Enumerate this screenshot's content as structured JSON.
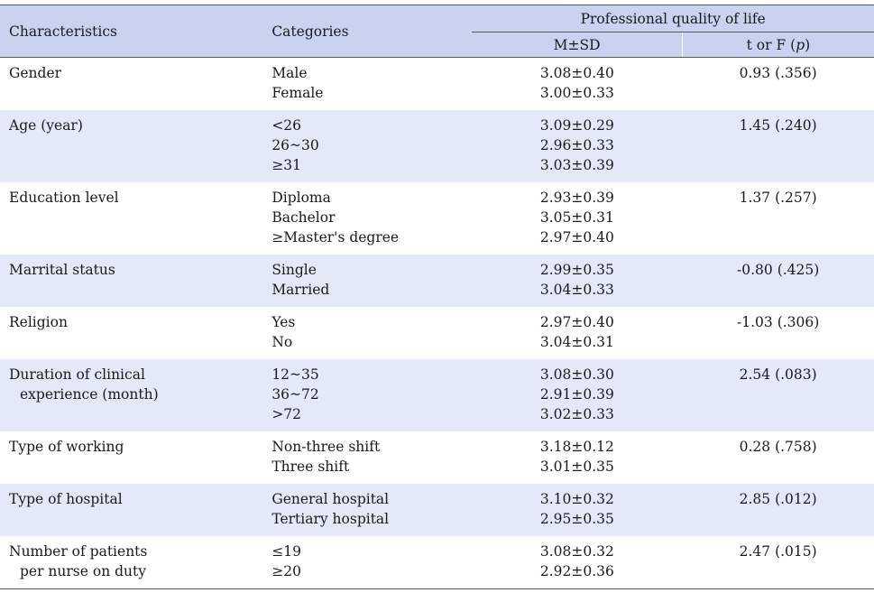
{
  "header": {
    "characteristics": "Characteristics",
    "categories": "Categories",
    "group": "Professional quality of life",
    "msd": "M±SD",
    "t_or_f": "t or F (",
    "p": "p",
    "close_paren": ")"
  },
  "rows": [
    {
      "char": [
        "Gender"
      ],
      "cats": [
        "Male",
        "Female"
      ],
      "msd": [
        "3.08±0.40",
        "3.00±0.33"
      ],
      "t": "0.93 (.356)"
    },
    {
      "char": [
        "Age (year)"
      ],
      "cats": [
        "<26",
        "26~30",
        "≥31"
      ],
      "msd": [
        "3.09±0.29",
        "2.96±0.33",
        "3.03±0.39"
      ],
      "t": "1.45 (.240)"
    },
    {
      "char": [
        "Education level"
      ],
      "cats": [
        "Diploma",
        "Bachelor",
        "≥Master's degree"
      ],
      "msd": [
        "2.93±0.39",
        "3.05±0.31",
        "2.97±0.40"
      ],
      "t": "1.37 (.257)"
    },
    {
      "char": [
        "Marrital status"
      ],
      "cats": [
        "Single",
        "Married"
      ],
      "msd": [
        "2.99±0.35",
        "3.04±0.33"
      ],
      "t": "-0.80 (.425)"
    },
    {
      "char": [
        "Religion"
      ],
      "cats": [
        "Yes",
        "No"
      ],
      "msd": [
        "2.97±0.40",
        "3.04±0.31"
      ],
      "t": "-1.03 (.306)"
    },
    {
      "char": [
        "Duration of clinical",
        "experience (month)"
      ],
      "cats": [
        "12~35",
        "36~72",
        ">72"
      ],
      "msd": [
        "3.08±0.30",
        "2.91±0.39",
        "3.02±0.33"
      ],
      "t": "2.54 (.083)"
    },
    {
      "char": [
        "Type of working"
      ],
      "cats": [
        "Non-three shift",
        "Three shift"
      ],
      "msd": [
        "3.18±0.12",
        "3.01±0.35"
      ],
      "t": "0.28 (.758)"
    },
    {
      "char": [
        "Type of hospital"
      ],
      "cats": [
        "General hospital",
        "Tertiary hospital"
      ],
      "msd": [
        "3.10±0.32",
        "2.95±0.35"
      ],
      "t": "2.85 (.012)"
    },
    {
      "char": [
        "Number of patients",
        "per nurse on duty"
      ],
      "cats": [
        "≤19",
        "≥20"
      ],
      "msd": [
        "3.08±0.32",
        "2.92±0.36"
      ],
      "t": "2.47 (.015)"
    }
  ]
}
